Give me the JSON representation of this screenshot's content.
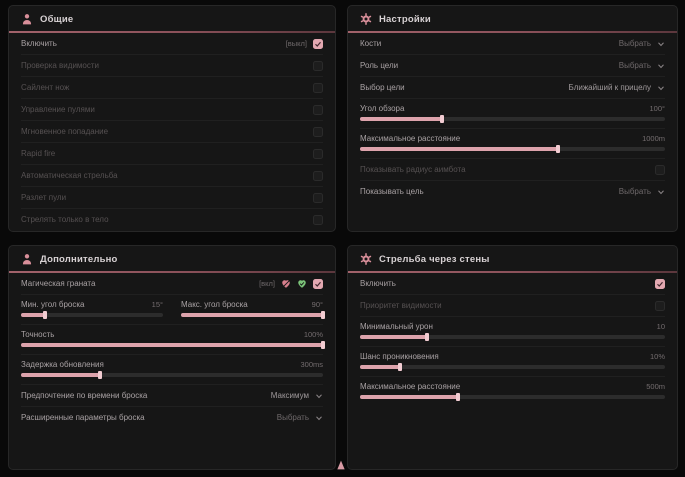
{
  "colors": {
    "accent_pink": "#dda3ac",
    "checkbox_pink": "#e3a8b1",
    "heart_green": "#7cc47a",
    "panel_bg": "#161616",
    "page_bg": "#090909",
    "header_line": "#9c5f68"
  },
  "panels": [
    {
      "title": "Общие",
      "icon": "person-icon",
      "rows": [
        {
          "type": "toggle",
          "label": "Включить",
          "suffix": "[выкл]",
          "checked": true,
          "dim": false
        },
        {
          "type": "toggle",
          "label": "Проверка видимости",
          "checked": false,
          "dim": true
        },
        {
          "type": "toggle",
          "label": "Сайлент нож",
          "checked": false,
          "dim": true
        },
        {
          "type": "toggle",
          "label": "Управление пулями",
          "checked": false,
          "dim": true
        },
        {
          "type": "toggle",
          "label": "Мгновенное попадание",
          "checked": false,
          "dim": true
        },
        {
          "type": "toggle",
          "label": "Rapid fire",
          "checked": false,
          "dim": true
        },
        {
          "type": "toggle",
          "label": "Автоматическая стрельба",
          "checked": false,
          "dim": true
        },
        {
          "type": "toggle",
          "label": "Разлет пули",
          "checked": false,
          "dim": true
        },
        {
          "type": "toggle",
          "label": "Стрелять только в тело",
          "checked": false,
          "dim": true
        }
      ]
    },
    {
      "title": "Настройки",
      "icon": "gear-icon",
      "rows": [
        {
          "type": "select",
          "label": "Кости",
          "value": "Выбрать",
          "placeholder": true
        },
        {
          "type": "select",
          "label": "Роль цели",
          "value": "Выбрать",
          "placeholder": true
        },
        {
          "type": "select",
          "label": "Выбор цели",
          "value": "Ближайший к прицелу",
          "placeholder": false
        },
        {
          "type": "slider",
          "label": "Угол обзора",
          "value": "100°",
          "percent": 27
        },
        {
          "type": "slider",
          "label": "Максимальное расстояние",
          "value": "1000m",
          "percent": 65
        },
        {
          "type": "toggle",
          "label": "Показывать радиус аимбота",
          "checked": false,
          "dim": true
        },
        {
          "type": "select",
          "label": "Показывать цель",
          "value": "Выбрать",
          "placeholder": true
        }
      ]
    },
    {
      "title": "Дополнительно",
      "icon": "person-icon",
      "rows": [
        {
          "type": "toggle",
          "label": "Магическая граната",
          "suffix": "[вкл]",
          "icons": [
            "heart-off-icon",
            "heart-check-icon"
          ],
          "checked": true,
          "dim": false
        },
        {
          "type": "slider-pair",
          "items": [
            {
              "label": "Мин. угол броска",
              "value": "15°",
              "percent": 17
            },
            {
              "label": "Макс. угол броска",
              "value": "90°",
              "percent": 100
            }
          ]
        },
        {
          "type": "slider",
          "label": "Точность",
          "value": "100%",
          "percent": 100
        },
        {
          "type": "slider",
          "label": "Задержка обновления",
          "value": "300ms",
          "percent": 26
        },
        {
          "type": "select",
          "label": "Предпочтение по времени броска",
          "value": "Максимум",
          "placeholder": false
        },
        {
          "type": "select",
          "label": "Расширенные параметры броска",
          "value": "Выбрать",
          "placeholder": true
        }
      ]
    },
    {
      "title": "Стрельба через стены",
      "icon": "gear-icon",
      "rows": [
        {
          "type": "toggle",
          "label": "Включить",
          "checked": true,
          "dim": false
        },
        {
          "type": "toggle",
          "label": "Приоритет видимости",
          "checked": false,
          "dim": true
        },
        {
          "type": "slider",
          "label": "Минимальный урон",
          "value": "10",
          "percent": 22
        },
        {
          "type": "slider",
          "label": "Шанс проникновения",
          "value": "10%",
          "percent": 13
        },
        {
          "type": "slider",
          "label": "Максимальное расстояние",
          "value": "500m",
          "percent": 32
        }
      ]
    }
  ],
  "footer": {
    "icon": "arrow-up-icon"
  }
}
